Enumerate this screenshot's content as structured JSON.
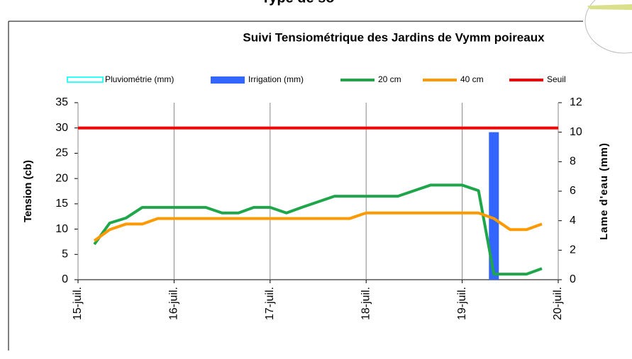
{
  "header": {
    "title": "Type de so"
  },
  "chart_data": {
    "type": "line",
    "title": "Suivi Tensiométrique des Jardins de Vymm poireaux",
    "y_label": "Tension (cb)",
    "y2_label": "Lame d'eau (mm)",
    "xlim": [
      15,
      20
    ],
    "xticks": [
      {
        "value": 15,
        "label": "15-juil."
      },
      {
        "value": 16,
        "label": "16-juil."
      },
      {
        "value": 17,
        "label": "17-juil."
      },
      {
        "value": 18,
        "label": "18-juil."
      },
      {
        "value": 19,
        "label": "19-juil."
      },
      {
        "value": 20,
        "label": "20-juil."
      }
    ],
    "ylim": [
      0,
      35
    ],
    "yticks": [
      0,
      5,
      10,
      15,
      20,
      25,
      30,
      35
    ],
    "y2lim": [
      0,
      12
    ],
    "y2ticks": [
      0,
      2,
      4,
      6,
      8,
      10,
      12
    ],
    "grid": "x",
    "x": [
      15.17,
      15.33,
      15.5,
      15.67,
      15.83,
      16,
      16.17,
      16.33,
      16.5,
      16.67,
      16.83,
      17,
      17.17,
      17.33,
      17.5,
      17.67,
      17.83,
      18,
      18.17,
      18.33,
      18.5,
      18.67,
      18.83,
      19,
      19.17,
      19.33,
      19.5,
      19.67,
      19.83
    ],
    "series": [
      {
        "name": "Pluviométrie (mm)",
        "color": "#33ffff",
        "kind": "bar",
        "axis": "y2",
        "x": [],
        "values": []
      },
      {
        "name": "Irrigation (mm)",
        "color": "#3366ff",
        "kind": "bar",
        "axis": "y2",
        "x": [
          19.33
        ],
        "values": [
          10
        ]
      },
      {
        "name": "20 cm",
        "color": "#1fa64a",
        "kind": "line",
        "values": [
          7,
          11.2,
          12.2,
          14.3,
          14.3,
          14.3,
          14.3,
          14.3,
          13.2,
          13.2,
          14.3,
          14.3,
          13.2,
          14.3,
          15.4,
          16.5,
          16.5,
          16.5,
          16.5,
          16.5,
          17.6,
          18.7,
          18.7,
          18.7,
          17.6,
          1.1,
          1.1,
          1.1,
          2.2
        ]
      },
      {
        "name": "40 cm",
        "color": "#ff9900",
        "kind": "line",
        "values": [
          7.7,
          9.9,
          11,
          11,
          12.1,
          12.1,
          12.1,
          12.1,
          12.1,
          12.1,
          12.1,
          12.1,
          12.1,
          12.1,
          12.1,
          12.1,
          12.1,
          13.2,
          13.2,
          13.2,
          13.2,
          13.2,
          13.2,
          13.2,
          13.2,
          12.1,
          9.9,
          9.9,
          11
        ]
      },
      {
        "name": "Seuil",
        "color": "#ff0000",
        "kind": "line",
        "x": [
          15,
          20
        ],
        "values": [
          30,
          30
        ]
      }
    ]
  }
}
